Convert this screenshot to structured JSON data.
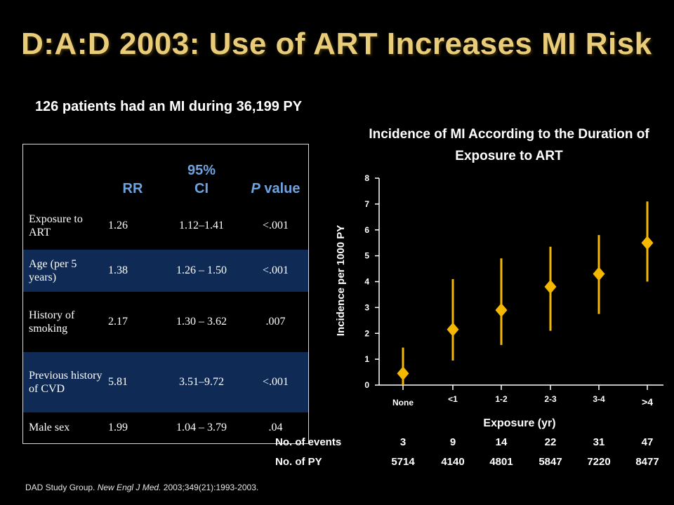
{
  "slide": {
    "title": "D:A:D 2003: Use of ART Increases MI Risk",
    "subtitle": "126 patients had an MI during 36,199 PY",
    "citation_pre": "DAD Study Group.",
    "citation_journal": "New Engl J Med.",
    "citation_post": "2003;349(21):1993-2003."
  },
  "table": {
    "headers": {
      "blank": "",
      "rr": "RR",
      "ci": "95% CI",
      "p_letter": "P",
      "p_rest": " value"
    },
    "rows": [
      {
        "label": "Exposure to ART",
        "rr": "1.26",
        "ci": "1.12–1.41",
        "p": "<.001",
        "highlight": false
      },
      {
        "label": "Age (per 5 years)",
        "rr": "1.38",
        "ci": "1.26 – 1.50",
        "p": "<.001",
        "highlight": true
      },
      {
        "label": "History of smoking",
        "rr": "2.17",
        "ci": "1.30 – 3.62",
        "p": ".007",
        "highlight": false
      },
      {
        "label": "Previous history of CVD",
        "rr": "5.81",
        "ci": "3.51–9.72",
        "p": "<.001",
        "highlight": true
      },
      {
        "label": "Male sex",
        "rr": "1.99",
        "ci": "1.04 – 3.79",
        "p": ".04",
        "highlight": false
      }
    ]
  },
  "chart_data": {
    "type": "scatter",
    "title": "Incidence of MI According to the Duration of Exposure to ART",
    "xlabel": "Exposure (yr)",
    "ylabel": "Incidence per 1000 PY",
    "ylim": [
      0,
      8
    ],
    "yticks": [
      "0",
      "1",
      "2",
      "3",
      "4",
      "5",
      "6",
      "7",
      "8"
    ],
    "categories": [
      "None",
      "<1",
      "1-2",
      "2-3",
      "3-4",
      ">4"
    ],
    "values": [
      0.45,
      2.15,
      2.9,
      3.8,
      4.3,
      5.5
    ],
    "ci_low": [
      0,
      0.95,
      1.55,
      2.1,
      2.75,
      4.0
    ],
    "ci_high": [
      1.45,
      4.1,
      4.9,
      5.35,
      5.8,
      7.1
    ],
    "marker_color": "#f5b800",
    "events_label": "No. of events",
    "events": [
      "3",
      "9",
      "14",
      "22",
      "31",
      "47"
    ],
    "py_label": "No. of PY",
    "py": [
      "5714",
      "4140",
      "4801",
      "5847",
      "7220",
      "8477"
    ]
  }
}
